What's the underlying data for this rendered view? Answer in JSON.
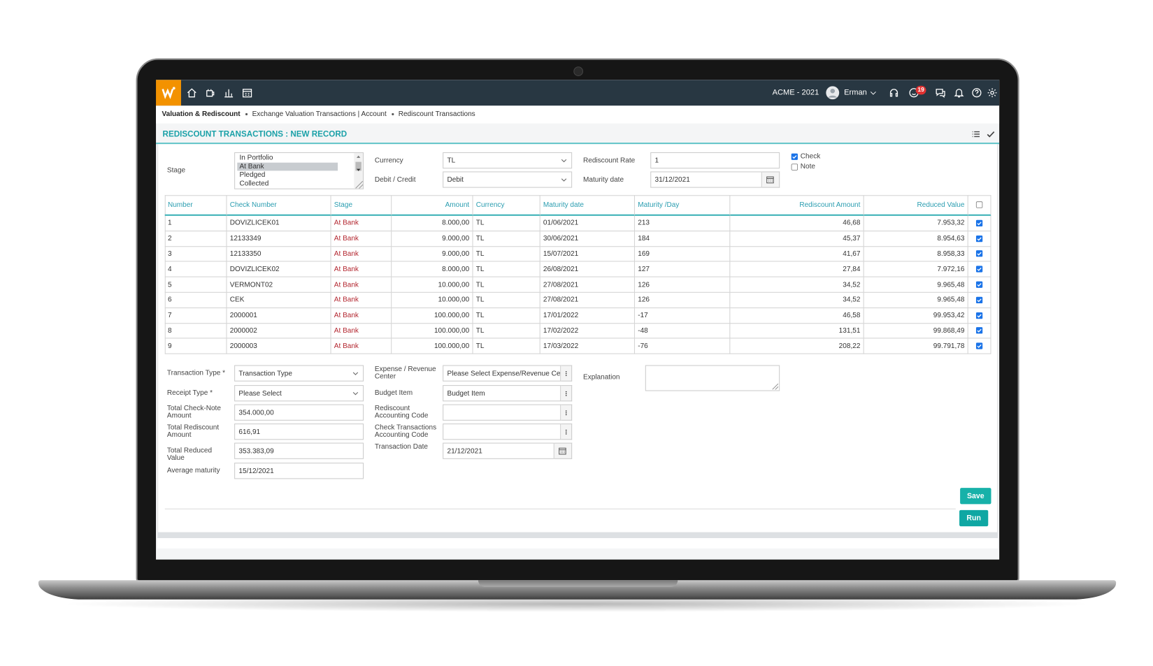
{
  "header": {
    "company": "ACME - 2021",
    "user": "Erman",
    "notifications": "19"
  },
  "breadcrumb": [
    "Valuation & Rediscount",
    "Exchange Valuation Transactions | Account",
    "Rediscount Transactions"
  ],
  "title": "REDISCOUNT TRANSACTIONS : NEW RECORD",
  "filters": {
    "stage": {
      "label": "Stage",
      "options": [
        "In Portfolio",
        "At Bank",
        "Pledged",
        "Collected"
      ],
      "selected": "At Bank"
    },
    "currency": {
      "label": "Currency",
      "value": "TL"
    },
    "debit_credit": {
      "label": "Debit / Credit",
      "value": "Debit"
    },
    "rediscount_rate": {
      "label": "Rediscount Rate",
      "value": "1"
    },
    "maturity_date": {
      "label": "Maturity date",
      "value": "31/12/2021"
    },
    "types": [
      {
        "label": "Check",
        "checked": true
      },
      {
        "label": "Note",
        "checked": false
      }
    ]
  },
  "table": {
    "columns": [
      "Number",
      "Check Number",
      "Stage",
      "Amount",
      "Currency",
      "Maturity date",
      "Maturity /Day",
      "Rediscount Amount",
      "Reduced Value"
    ],
    "rows": [
      [
        "1",
        "DOVIZLICEK01",
        "At Bank",
        "8.000,00",
        "TL",
        "01/06/2021",
        "213",
        "46,68",
        "7.953,32"
      ],
      [
        "2",
        "12133349",
        "At Bank",
        "9.000,00",
        "TL",
        "30/06/2021",
        "184",
        "45,37",
        "8.954,63"
      ],
      [
        "3",
        "12133350",
        "At Bank",
        "9.000,00",
        "TL",
        "15/07/2021",
        "169",
        "41,67",
        "8.958,33"
      ],
      [
        "4",
        "DOVIZLICEK02",
        "At Bank",
        "8.000,00",
        "TL",
        "26/08/2021",
        "127",
        "27,84",
        "7.972,16"
      ],
      [
        "5",
        "VERMONT02",
        "At Bank",
        "10.000,00",
        "TL",
        "27/08/2021",
        "126",
        "34,52",
        "9.965,48"
      ],
      [
        "6",
        "CEK",
        "At Bank",
        "10.000,00",
        "TL",
        "27/08/2021",
        "126",
        "34,52",
        "9.965,48"
      ],
      [
        "7",
        "2000001",
        "At Bank",
        "100.000,00",
        "TL",
        "17/01/2022",
        "-17",
        "46,58",
        "99.953,42"
      ],
      [
        "8",
        "2000002",
        "At Bank",
        "100.000,00",
        "TL",
        "17/02/2022",
        "-48",
        "131,51",
        "99.868,49"
      ],
      [
        "9",
        "2000003",
        "At Bank",
        "100.000,00",
        "TL",
        "17/03/2022",
        "-76",
        "208,22",
        "99.791,78"
      ]
    ]
  },
  "form": {
    "left": [
      {
        "label": "Transaction Type *",
        "value": "Transaction Type"
      },
      {
        "label": "Receipt Type *",
        "value": "Please Select"
      },
      {
        "label": "Total Check-Note Amount",
        "value": "354.000,00"
      },
      {
        "label": "Total Rediscount Amount",
        "value": "616,91"
      },
      {
        "label": "Total Reduced Value",
        "value": "353.383,09"
      },
      {
        "label": "Average maturity",
        "value": "15/12/2021"
      }
    ],
    "right": [
      {
        "label": "Expense / Revenue Center",
        "value": "Please Select Expense/Revenue Cent"
      },
      {
        "label": "Budget Item",
        "value": "Budget Item"
      },
      {
        "label": "Rediscount Accounting Code"
      },
      {
        "label": "Check Transactions Accounting Code"
      },
      {
        "label": "Transaction Date",
        "value": "21/12/2021"
      }
    ],
    "explanation": {
      "label": "Explanation"
    }
  },
  "buttons": [
    "Save",
    "Run"
  ]
}
